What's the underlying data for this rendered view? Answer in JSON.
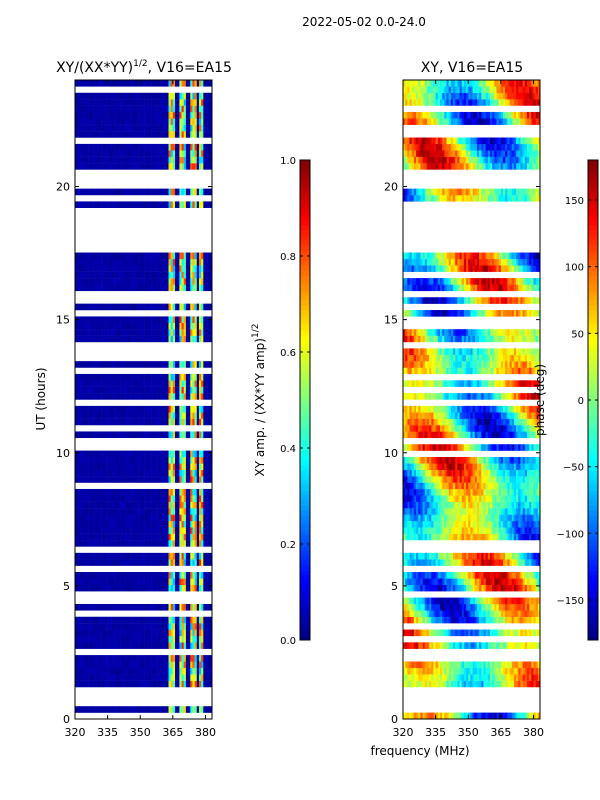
{
  "suptitle": "2022-05-02 0.0-24.0",
  "xlabel": "frequency (MHz)",
  "chart_data": [
    {
      "type": "heatmap",
      "title_main": "XY/(XX*YY)",
      "title_exp": "1/2",
      "title_rest": ", V16=EA15",
      "xlabel": "",
      "ylabel": "UT (hours)",
      "xlim": [
        320,
        383
      ],
      "ylim": [
        0,
        24
      ],
      "xticks": [
        320,
        335,
        350,
        365,
        380
      ],
      "xtick_labels": [
        "320",
        "335",
        "350",
        "365",
        "380"
      ],
      "yticks": [
        0,
        5,
        10,
        15,
        20
      ],
      "ytick_labels": [
        "0",
        "5",
        "10",
        "15",
        "20"
      ],
      "colorbar": {
        "label_main": "XY amp. / (XX*YY amp)",
        "label_exp": "1/2",
        "range": [
          0.0,
          1.0
        ],
        "ticks": [
          0.0,
          0.2,
          0.4,
          0.6,
          0.8,
          1.0
        ],
        "tick_labels": [
          "0.0",
          "0.2",
          "0.4",
          "0.6",
          "0.8",
          "1.0"
        ],
        "colormap": "jet"
      },
      "blank_time_ranges_hours": [
        [
          0.45,
          1.3
        ],
        [
          1.5,
          1.55
        ],
        [
          4.6,
          4.75
        ],
        [
          6.3,
          6.55
        ],
        [
          10.0,
          10.15
        ],
        [
          11.8,
          12.05
        ],
        [
          13.9,
          14.1
        ],
        [
          17.5,
          19.1
        ],
        [
          20.0,
          20.6
        ]
      ],
      "active_frequency_columns_mhz": [
        [
          363,
          366
        ],
        [
          368,
          371
        ],
        [
          373,
          376
        ],
        [
          377,
          379
        ]
      ],
      "background_value": 0.02,
      "active_value_range": [
        0.3,
        0.85
      ]
    },
    {
      "type": "heatmap",
      "title_main": "XY, V16=EA15",
      "xlabel": "",
      "ylabel": "",
      "xlim": [
        320,
        383
      ],
      "ylim": [
        0,
        24
      ],
      "xticks": [
        320,
        335,
        350,
        365,
        380
      ],
      "xtick_labels": [
        "320",
        "335",
        "350",
        "365",
        "380"
      ],
      "yticks": [
        0,
        5,
        10,
        15,
        20
      ],
      "ytick_labels": [
        "0",
        "5",
        "10",
        "15",
        "20"
      ],
      "colorbar": {
        "label_main": "phase (deg)",
        "range": [
          -180,
          180
        ],
        "ticks": [
          -150,
          -100,
          -50,
          0,
          50,
          100,
          150
        ],
        "tick_labels": [
          "−150",
          "−100",
          "−50",
          "0",
          "50",
          "100",
          "150"
        ],
        "colormap": "jet"
      },
      "blank_time_ranges_hours": [
        [
          0.45,
          1.3
        ],
        [
          1.5,
          1.55
        ],
        [
          4.6,
          4.75
        ],
        [
          6.3,
          6.55
        ],
        [
          10.0,
          10.15
        ],
        [
          11.8,
          12.05
        ],
        [
          13.9,
          14.1
        ],
        [
          17.5,
          19.1
        ],
        [
          20.0,
          20.6
        ]
      ],
      "phase_range_deg": [
        -180,
        180
      ]
    }
  ]
}
